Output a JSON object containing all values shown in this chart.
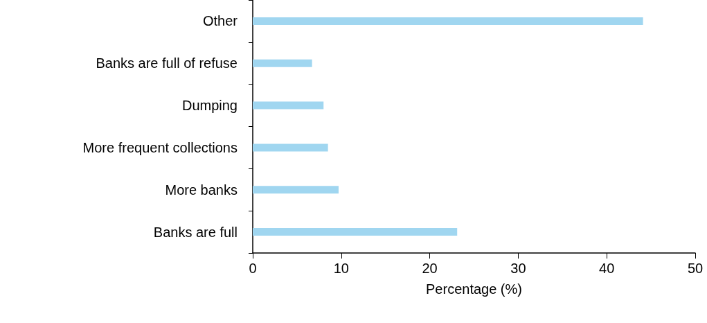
{
  "chart_data": {
    "type": "bar",
    "orientation": "horizontal",
    "xlabel": "Percentage (%)",
    "categories": [
      "Other",
      "Banks are full of refuse",
      "Dumping",
      "More frequent collections",
      "More banks",
      "Banks are full"
    ],
    "values": [
      44.1,
      6.7,
      8.0,
      8.5,
      9.7,
      23.1
    ],
    "color": "#a0d6f0",
    "xlim": [
      0,
      50
    ],
    "xticks": [
      0,
      10,
      20,
      30,
      40,
      50
    ],
    "grid": false
  }
}
